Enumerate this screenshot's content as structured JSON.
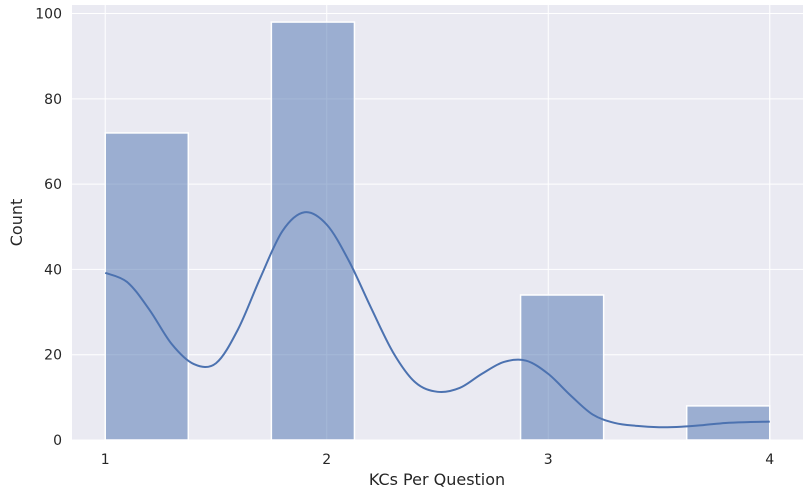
{
  "chart_data": {
    "type": "bar",
    "xlabel": "KCs Per Question",
    "ylabel": "Count",
    "bins": [
      {
        "left": 1.0,
        "right": 1.375,
        "count": 72
      },
      {
        "left": 1.75,
        "right": 2.125,
        "count": 98
      },
      {
        "left": 2.875,
        "right": 3.25,
        "count": 34
      },
      {
        "left": 3.625,
        "right": 4.0,
        "count": 8
      }
    ],
    "kde_curve": {
      "x": [
        1.0,
        1.1,
        1.2,
        1.3,
        1.4,
        1.5,
        1.6,
        1.7,
        1.8,
        1.9,
        2.0,
        2.1,
        2.2,
        2.3,
        2.4,
        2.5,
        2.6,
        2.7,
        2.8,
        2.9,
        3.0,
        3.1,
        3.2,
        3.3,
        3.4,
        3.5,
        3.6,
        3.7,
        3.8,
        3.9,
        4.0
      ],
      "y": [
        39.2,
        37.0,
        30.5,
        22.5,
        17.8,
        18.0,
        26.0,
        38.0,
        49.0,
        53.4,
        50.5,
        42.0,
        31.0,
        20.5,
        13.5,
        11.3,
        12.2,
        15.5,
        18.3,
        18.6,
        15.5,
        10.5,
        6.0,
        4.0,
        3.3,
        3.0,
        3.1,
        3.5,
        4.0,
        4.2,
        4.3
      ]
    },
    "xlim": [
      0.85,
      4.15
    ],
    "ylim": [
      0,
      102
    ],
    "xticks": [
      1,
      2,
      3,
      4
    ],
    "yticks": [
      0,
      20,
      40,
      60,
      80,
      100
    ],
    "grid": true,
    "colors": {
      "background": "#eaeaf2",
      "grid": "#ffffff",
      "bar_fill": "#4c72b0",
      "bar_fill_opacity": 0.5,
      "bar_edge": "#ffffff",
      "curve": "#4c72b0"
    }
  }
}
